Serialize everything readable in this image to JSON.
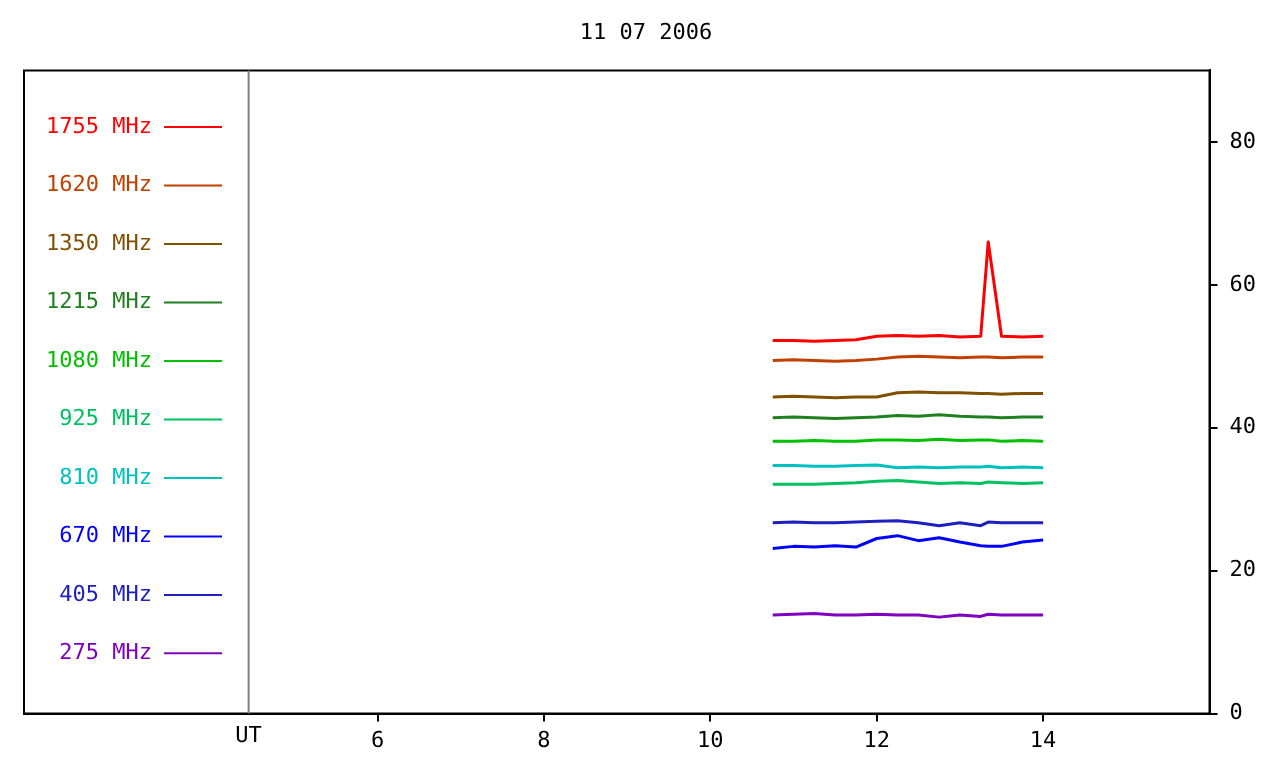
{
  "chart_data": {
    "type": "line",
    "title": "11 07 2006",
    "x": [
      10.75,
      11,
      11.25,
      11.5,
      11.75,
      12,
      12.25,
      12.5,
      12.75,
      13,
      13.25,
      13.34,
      13.5,
      13.75,
      14
    ],
    "series": [
      {
        "name": "1755 MHz",
        "color": "#ff0000",
        "values": [
          52.2,
          52.2,
          52.1,
          52.2,
          52.3,
          52.8,
          52.9,
          52.8,
          52.9,
          52.7,
          52.8,
          66.0,
          52.8,
          52.7,
          52.8
        ]
      },
      {
        "name": "1620 MHz",
        "color": "#c04000",
        "values": [
          49.4,
          49.5,
          49.4,
          49.3,
          49.4,
          49.6,
          49.9,
          50.0,
          49.9,
          49.8,
          49.9,
          49.9,
          49.8,
          49.9,
          49.9
        ]
      },
      {
        "name": "1350 MHz",
        "color": "#805000",
        "values": [
          44.3,
          44.4,
          44.3,
          44.2,
          44.3,
          44.3,
          44.9,
          45.0,
          44.9,
          44.9,
          44.8,
          44.8,
          44.7,
          44.8,
          44.8
        ]
      },
      {
        "name": "1215 MHz",
        "color": "#208020",
        "values": [
          41.4,
          41.5,
          41.4,
          41.3,
          41.4,
          41.5,
          41.7,
          41.6,
          41.8,
          41.6,
          41.5,
          41.5,
          41.4,
          41.5,
          41.5
        ]
      },
      {
        "name": "1080 MHz",
        "color": "#00c000",
        "values": [
          38.1,
          38.1,
          38.2,
          38.1,
          38.1,
          38.3,
          38.3,
          38.2,
          38.4,
          38.2,
          38.3,
          38.3,
          38.1,
          38.2,
          38.1
        ]
      },
      {
        "name": "925 MHz",
        "color": "#00c060",
        "values": [
          32.1,
          32.1,
          32.1,
          32.2,
          32.3,
          32.5,
          32.6,
          32.4,
          32.2,
          32.3,
          32.2,
          32.4,
          32.3,
          32.2,
          32.3
        ]
      },
      {
        "name": "810 MHz",
        "color": "#00c0c0",
        "values": [
          34.7,
          34.7,
          34.6,
          34.6,
          34.7,
          34.8,
          34.4,
          34.5,
          34.4,
          34.5,
          34.5,
          34.6,
          34.4,
          34.5,
          34.4
        ]
      },
      {
        "name": "670 MHz",
        "color": "#0000ff",
        "values": [
          23.1,
          23.4,
          23.3,
          23.5,
          23.3,
          24.5,
          24.9,
          24.2,
          24.6,
          24.0,
          23.5,
          23.4,
          23.4,
          24.0,
          24.3
        ]
      },
      {
        "name": "405 MHz",
        "color": "#2020c0",
        "values": [
          26.7,
          26.8,
          26.7,
          26.7,
          26.8,
          26.9,
          27.0,
          26.7,
          26.3,
          26.7,
          26.3,
          26.8,
          26.7,
          26.7,
          26.7
        ]
      },
      {
        "name": "275 MHz",
        "color": "#8000c0",
        "values": [
          13.8,
          13.9,
          14.0,
          13.8,
          13.8,
          13.9,
          13.8,
          13.8,
          13.5,
          13.8,
          13.6,
          13.9,
          13.8,
          13.8,
          13.8
        ]
      }
    ],
    "xlim": [
      1.75,
      16
    ],
    "xticks": [
      6,
      8,
      10,
      12,
      14
    ],
    "ylim": [
      0,
      90
    ],
    "yticks": [
      0,
      20,
      40,
      60,
      80
    ],
    "ref_lines": [
      {
        "axis": "x",
        "value": 4.45,
        "label": "UT",
        "color": "#808080"
      }
    ],
    "grid": false,
    "legend": "left",
    "marker": "none",
    "line_style": "solid"
  }
}
